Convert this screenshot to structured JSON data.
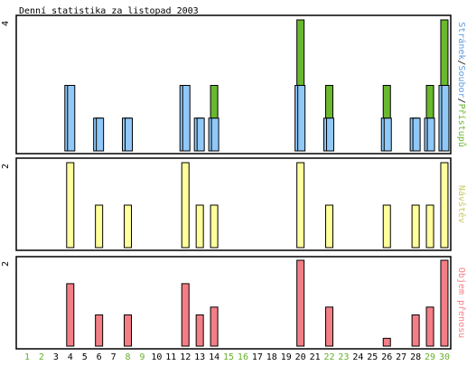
{
  "chart_data": {
    "type": "bar",
    "title": "Denní statistika za listopad 2003",
    "categories": [
      "1",
      "2",
      "3",
      "4",
      "5",
      "6",
      "7",
      "8",
      "9",
      "10",
      "11",
      "12",
      "13",
      "14",
      "15",
      "16",
      "17",
      "18",
      "19",
      "20",
      "21",
      "22",
      "23",
      "24",
      "25",
      "26",
      "27",
      "28",
      "29",
      "30"
    ],
    "weekend_days": [
      1,
      2,
      8,
      9,
      15,
      16,
      22,
      23,
      29,
      30
    ],
    "colors": {
      "weekday_label": "#000000",
      "weekend_label": "#66b02c",
      "access": "#6ab82e",
      "files": "#90c8f8",
      "pages": "#90c8f8",
      "visits": "#ffff9c",
      "traffic": "#f47e86"
    },
    "panels": [
      {
        "label_parts": [
          {
            "text": "Stránek",
            "color": "#5e9bdc"
          },
          {
            "text": "/",
            "color": "#000000"
          },
          {
            "text": "Soubor",
            "color": "#5e9bdc"
          },
          {
            "text": "/",
            "color": "#000000"
          },
          {
            "text": "Přístupů",
            "color": "#6ab82e"
          }
        ],
        "ymax_label": "4",
        "ymax": 4,
        "series": [
          {
            "name": "Přístupů",
            "values": [
              0,
              0,
              0,
              2,
              0,
              1,
              0,
              1,
              0,
              0,
              0,
              2,
              1,
              2,
              0,
              0,
              0,
              0,
              0,
              4,
              0,
              2,
              0,
              0,
              0,
              2,
              0,
              1,
              2,
              4
            ]
          },
          {
            "name": "Soubor",
            "values": [
              0,
              0,
              0,
              2,
              0,
              1,
              0,
              1,
              0,
              0,
              0,
              2,
              1,
              1,
              0,
              0,
              0,
              0,
              0,
              2,
              0,
              1,
              0,
              0,
              0,
              1,
              0,
              1,
              1,
              2
            ]
          },
          {
            "name": "Stránek",
            "values": [
              0,
              0,
              0,
              2,
              0,
              1,
              0,
              1,
              0,
              0,
              0,
              2,
              1,
              1,
              0,
              0,
              0,
              0,
              0,
              2,
              0,
              1,
              0,
              0,
              0,
              1,
              0,
              1,
              1,
              2
            ]
          }
        ]
      },
      {
        "label_parts": [
          {
            "text": "Návštěv",
            "color": "#c8c864"
          }
        ],
        "ymax_label": "2",
        "ymax": 2,
        "series": [
          {
            "name": "Návštěv",
            "values": [
              0,
              0,
              0,
              2,
              0,
              1,
              0,
              1,
              0,
              0,
              0,
              2,
              1,
              1,
              0,
              0,
              0,
              0,
              0,
              2,
              0,
              1,
              0,
              0,
              0,
              1,
              0,
              1,
              1,
              2
            ]
          }
        ]
      },
      {
        "label_parts": [
          {
            "text": "Objem přenosu",
            "color": "#f47e86"
          }
        ],
        "ymax_label": "2",
        "ymax": 2.2,
        "series": [
          {
            "name": "Objem přenosu",
            "values": [
              0,
              0,
              0,
              1.6,
              0,
              0.8,
              0,
              0.8,
              0,
              0,
              0,
              1.6,
              0.8,
              1.0,
              0,
              0,
              0,
              0,
              0,
              2.2,
              0,
              1.0,
              0,
              0,
              0,
              0.2,
              0,
              0.8,
              1.0,
              2.2
            ]
          }
        ]
      }
    ]
  }
}
